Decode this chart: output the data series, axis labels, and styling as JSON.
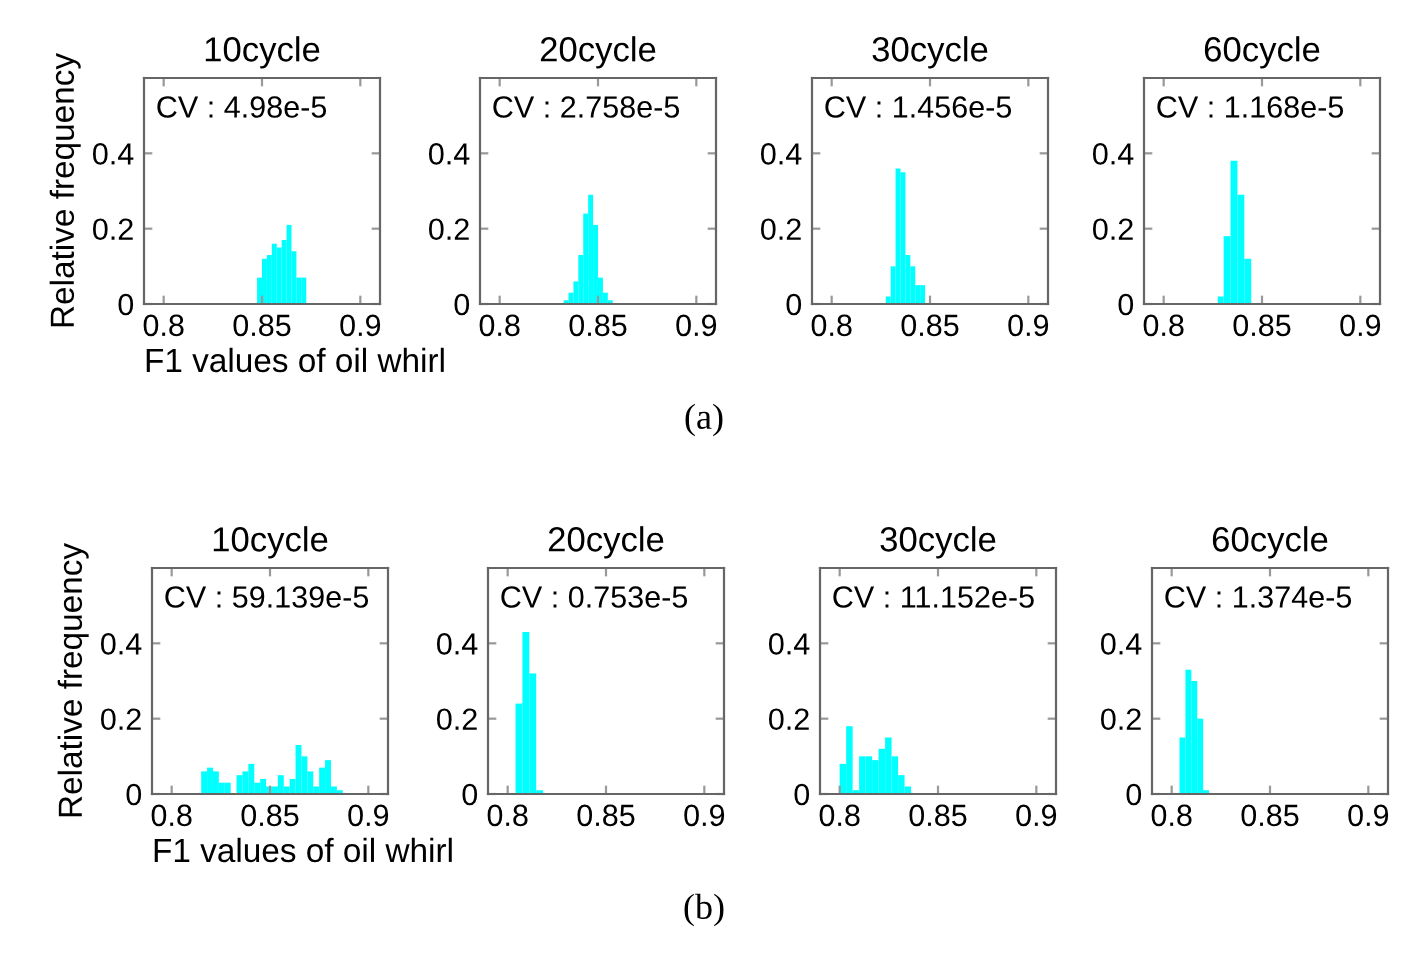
{
  "chart_data": [
    {
      "type": "histogram",
      "title": "10cycle",
      "xlabel": "F1 values of oil whirl",
      "ylabel": "Relative frequency",
      "annotations": [
        "CV : 4.98e-5",
        "(a)"
      ],
      "color": "#00ffff",
      "xlim": [
        0.79,
        0.91
      ],
      "ylim": [
        0,
        0.6
      ],
      "xticks": [
        0.8,
        0.85,
        0.9
      ],
      "yticks": [
        0,
        0.2,
        0.4
      ],
      "bins": [
        0.8475,
        0.85,
        0.8525,
        0.855,
        0.8575,
        0.86,
        0.8625,
        0.865,
        0.8675,
        0.87,
        0.8725
      ],
      "values": [
        0.07,
        0.12,
        0.13,
        0.16,
        0.15,
        0.17,
        0.21,
        0.14,
        0.07,
        0.07
      ]
    },
    {
      "type": "histogram",
      "title": "20cycle",
      "annotations": [
        "CV : 2.758e-5"
      ],
      "color": "#00ffff",
      "xlim": [
        0.79,
        0.91
      ],
      "ylim": [
        0,
        0.6
      ],
      "xticks": [
        0.8,
        0.85,
        0.9
      ],
      "yticks": [
        0,
        0.2,
        0.4
      ],
      "bins": [
        0.8325,
        0.835,
        0.8375,
        0.84,
        0.8425,
        0.845,
        0.8475,
        0.85,
        0.8525,
        0.855,
        0.8575
      ],
      "values": [
        0.01,
        0.03,
        0.06,
        0.13,
        0.24,
        0.29,
        0.21,
        0.07,
        0.03,
        0.01
      ]
    },
    {
      "type": "histogram",
      "title": "30cycle",
      "annotations": [
        "CV : 1.456e-5"
      ],
      "color": "#00ffff",
      "xlim": [
        0.79,
        0.91
      ],
      "ylim": [
        0,
        0.6
      ],
      "xticks": [
        0.8,
        0.85,
        0.9
      ],
      "yticks": [
        0,
        0.2,
        0.4
      ],
      "bins": [
        0.8275,
        0.83,
        0.8325,
        0.835,
        0.8375,
        0.84,
        0.8425,
        0.845,
        0.8475
      ],
      "values": [
        0.02,
        0.1,
        0.36,
        0.35,
        0.13,
        0.1,
        0.05,
        0.05
      ]
    },
    {
      "type": "histogram",
      "title": "60cycle",
      "annotations": [
        "CV : 1.168e-5"
      ],
      "color": "#00ffff",
      "xlim": [
        0.79,
        0.91
      ],
      "ylim": [
        0,
        0.6
      ],
      "xticks": [
        0.8,
        0.85,
        0.9
      ],
      "yticks": [
        0,
        0.2,
        0.4
      ],
      "bins": [
        0.8275,
        0.8305,
        0.834,
        0.8375,
        0.841,
        0.8445
      ],
      "values": [
        0.02,
        0.18,
        0.38,
        0.29,
        0.12
      ]
    },
    {
      "type": "histogram",
      "title": "10cycle",
      "xlabel": "F1 values of oil whirl",
      "ylabel": "Relative frequency",
      "annotations": [
        "CV : 59.139e-5",
        "(b)"
      ],
      "color": "#00ffff",
      "xlim": [
        0.79,
        0.91
      ],
      "ylim": [
        0,
        0.6
      ],
      "xticks": [
        0.8,
        0.85,
        0.9
      ],
      "yticks": [
        0,
        0.2,
        0.4
      ],
      "bins": [
        0.815,
        0.818,
        0.821,
        0.824,
        0.827,
        0.83,
        0.833,
        0.836,
        0.839,
        0.842,
        0.845,
        0.848,
        0.851,
        0.854,
        0.857,
        0.86,
        0.863,
        0.866,
        0.869,
        0.872,
        0.875,
        0.878,
        0.881,
        0.884,
        0.887
      ],
      "values": [
        0.06,
        0.07,
        0.06,
        0.03,
        0.03,
        0,
        0.05,
        0.06,
        0.08,
        0.03,
        0.04,
        0.02,
        0.02,
        0.05,
        0.02,
        0.04,
        0.13,
        0.1,
        0.06,
        0.02,
        0.07,
        0.09,
        0.02,
        0.01
      ]
    },
    {
      "type": "histogram",
      "title": "20cycle",
      "annotations": [
        "CV : 0.753e-5"
      ],
      "color": "#00ffff",
      "xlim": [
        0.79,
        0.91
      ],
      "ylim": [
        0,
        0.6
      ],
      "xticks": [
        0.8,
        0.85,
        0.9
      ],
      "yticks": [
        0,
        0.2,
        0.4
      ],
      "bins": [
        0.804,
        0.8075,
        0.811,
        0.8145,
        0.818
      ],
      "values": [
        0.24,
        0.43,
        0.32,
        0.01
      ]
    },
    {
      "type": "histogram",
      "title": "30cycle",
      "annotations": [
        "CV : 11.152e-5"
      ],
      "color": "#00ffff",
      "xlim": [
        0.79,
        0.91
      ],
      "ylim": [
        0,
        0.6
      ],
      "xticks": [
        0.8,
        0.85,
        0.9
      ],
      "yticks": [
        0,
        0.2,
        0.4
      ],
      "bins": [
        0.8,
        0.8033,
        0.8066,
        0.8099,
        0.8132,
        0.8165,
        0.8198,
        0.8231,
        0.8264,
        0.8297,
        0.833,
        0.8363
      ],
      "values": [
        0.08,
        0.18,
        0.01,
        0.1,
        0.1,
        0.09,
        0.12,
        0.15,
        0.1,
        0.05,
        0.02
      ]
    },
    {
      "type": "histogram",
      "title": "60cycle",
      "annotations": [
        "CV : 1.374e-5"
      ],
      "color": "#00ffff",
      "xlim": [
        0.79,
        0.91
      ],
      "ylim": [
        0,
        0.6
      ],
      "xticks": [
        0.8,
        0.85,
        0.9
      ],
      "yticks": [
        0,
        0.2,
        0.4
      ],
      "bins": [
        0.804,
        0.807,
        0.81,
        0.813,
        0.816,
        0.819
      ],
      "values": [
        0.15,
        0.33,
        0.3,
        0.2,
        0.01
      ]
    }
  ]
}
